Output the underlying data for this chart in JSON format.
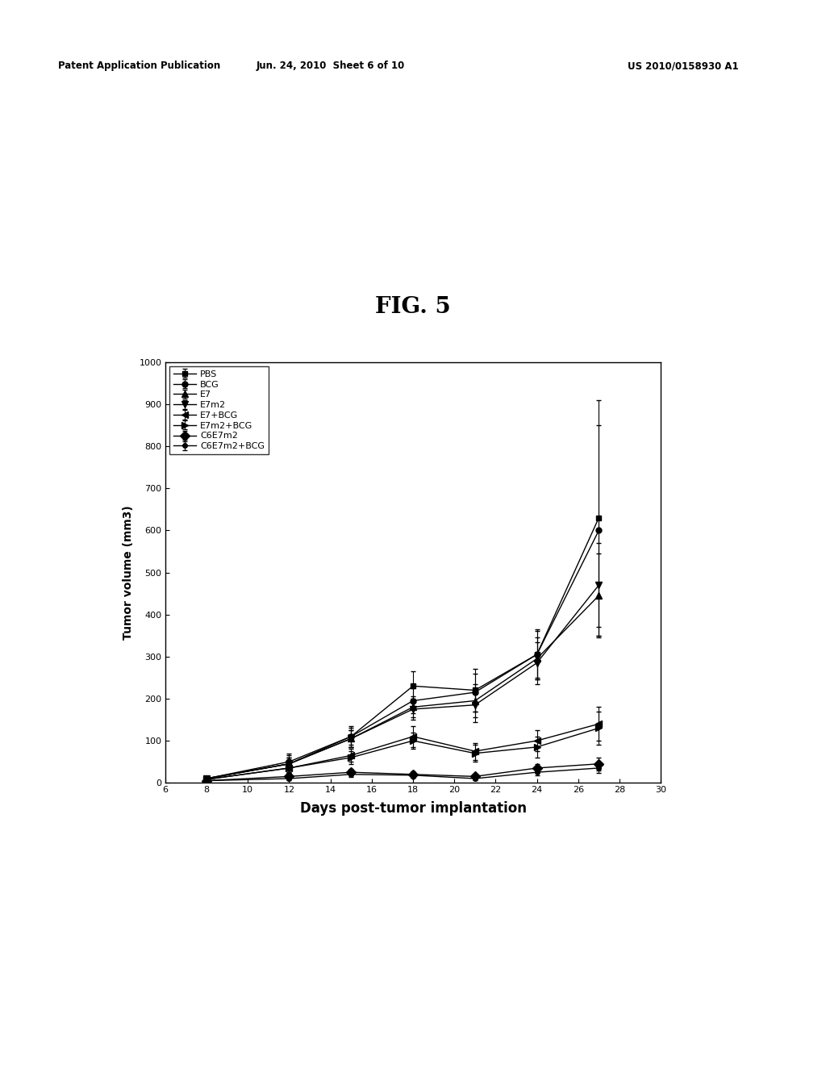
{
  "title": "FIG. 5",
  "xlabel": "Days post-tumor implantation",
  "ylabel": "Tumor volume (mm3)",
  "header_left": "Patent Application Publication",
  "header_mid": "Jun. 24, 2010  Sheet 6 of 10",
  "header_right": "US 2010/0158930 A1",
  "xlim": [
    6,
    30
  ],
  "ylim": [
    0,
    1000
  ],
  "xticks": [
    6,
    8,
    10,
    12,
    14,
    16,
    18,
    20,
    22,
    24,
    26,
    28,
    30
  ],
  "yticks": [
    0,
    100,
    200,
    300,
    400,
    500,
    600,
    700,
    800,
    900,
    1000
  ],
  "series": [
    {
      "label": "PBS",
      "marker": "s",
      "x": [
        8,
        12,
        15,
        18,
        21,
        24,
        27
      ],
      "y": [
        10,
        45,
        110,
        230,
        220,
        305,
        630
      ],
      "yerr": [
        5,
        20,
        25,
        35,
        50,
        60,
        280
      ]
    },
    {
      "label": "BCG",
      "marker": "o",
      "x": [
        8,
        12,
        15,
        18,
        21,
        24,
        27
      ],
      "y": [
        10,
        50,
        110,
        195,
        215,
        305,
        600
      ],
      "yerr": [
        5,
        20,
        20,
        30,
        45,
        55,
        250
      ]
    },
    {
      "label": "E7",
      "marker": "^",
      "x": [
        8,
        12,
        15,
        18,
        21,
        24,
        27
      ],
      "y": [
        10,
        45,
        105,
        180,
        195,
        295,
        445
      ],
      "yerr": [
        5,
        15,
        20,
        25,
        40,
        50,
        100
      ]
    },
    {
      "label": "E7m2",
      "marker": "v",
      "x": [
        8,
        12,
        15,
        18,
        21,
        24,
        27
      ],
      "y": [
        10,
        45,
        105,
        175,
        185,
        285,
        470
      ],
      "yerr": [
        5,
        15,
        20,
        25,
        40,
        50,
        100
      ]
    },
    {
      "label": "E7+BCG",
      "marker": "<",
      "x": [
        8,
        12,
        15,
        18,
        21,
        24,
        27
      ],
      "y": [
        8,
        35,
        65,
        110,
        75,
        100,
        140
      ],
      "yerr": [
        3,
        12,
        15,
        25,
        20,
        25,
        40
      ]
    },
    {
      "label": "E7m2+BCG",
      "marker": ">",
      "x": [
        8,
        12,
        15,
        18,
        21,
        24,
        27
      ],
      "y": [
        8,
        35,
        60,
        100,
        70,
        85,
        130
      ],
      "yerr": [
        3,
        12,
        15,
        20,
        20,
        25,
        40
      ]
    },
    {
      "label": "C6E7m2",
      "marker": "D",
      "x": [
        8,
        12,
        15,
        18,
        21,
        24,
        27
      ],
      "y": [
        5,
        15,
        25,
        20,
        15,
        35,
        45
      ],
      "yerr": [
        2,
        5,
        8,
        8,
        5,
        10,
        15
      ]
    },
    {
      "label": "C6E7m2+BCG",
      "marker": "o",
      "x": [
        8,
        12,
        15,
        18,
        21,
        24,
        27
      ],
      "y": [
        5,
        10,
        20,
        18,
        10,
        25,
        35
      ],
      "yerr": [
        2,
        4,
        6,
        6,
        4,
        8,
        12
      ]
    }
  ],
  "line_color": "#000000",
  "bg_color": "#ffffff",
  "fig_width": 10.24,
  "fig_height": 13.2,
  "dpi": 100
}
